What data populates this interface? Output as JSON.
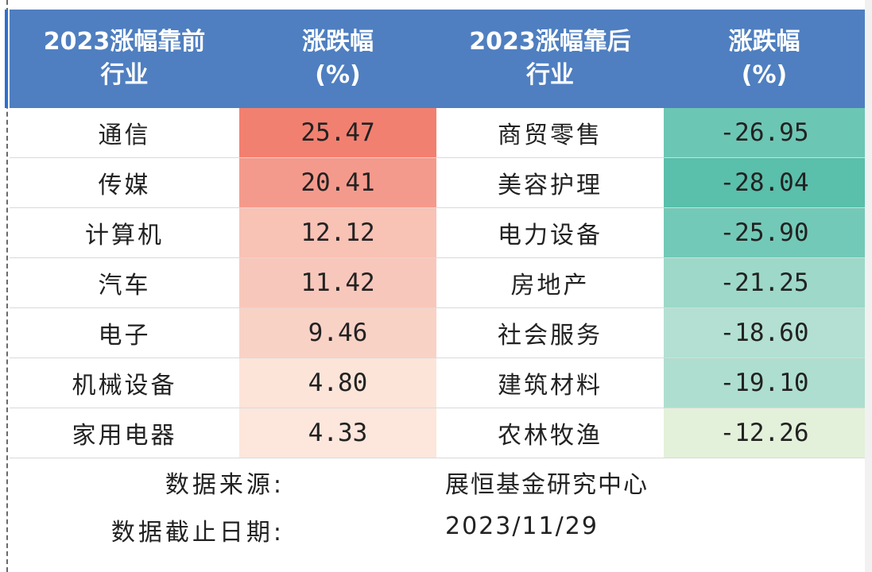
{
  "headers": [
    "2023涨幅靠前\n行业",
    "涨跌幅\n(%)",
    "2023涨幅靠后\n行业",
    "涨跌幅\n(%)"
  ],
  "rows": [
    {
      "top_industry": "通信",
      "top_change": "25.47",
      "top_color": "#f28070",
      "bottom_industry": "商贸零售",
      "bottom_change": "-26.95",
      "bottom_color": "#6cc6b4"
    },
    {
      "top_industry": "传媒",
      "top_change": "20.41",
      "top_color": "#f49a8c",
      "bottom_industry": "美容护理",
      "bottom_change": "-28.04",
      "bottom_color": "#5abfab"
    },
    {
      "top_industry": "计算机",
      "top_change": "12.12",
      "top_color": "#f8c2b5",
      "bottom_industry": "电力设备",
      "bottom_change": "-25.90",
      "bottom_color": "#73c9b7"
    },
    {
      "top_industry": "汽车",
      "top_change": "11.42",
      "top_color": "#f8c7bb",
      "bottom_industry": "房地产",
      "bottom_change": "-21.25",
      "bottom_color": "#9dd8c8"
    },
    {
      "top_industry": "电子",
      "top_change": "9.46",
      "top_color": "#f9d2c6",
      "bottom_industry": "社会服务",
      "bottom_change": "-18.60",
      "bottom_color": "#b3e0d2"
    },
    {
      "top_industry": "机械设备",
      "top_change": "4.80",
      "top_color": "#fce4d9",
      "bottom_industry": "建筑材料",
      "bottom_change": "-19.10",
      "bottom_color": "#aedecf"
    },
    {
      "top_industry": "家用电器",
      "top_change": "4.33",
      "top_color": "#fde6dc",
      "bottom_industry": "农林牧渔",
      "bottom_change": "-12.26",
      "bottom_color": "#e3f0da"
    }
  ],
  "footer": {
    "source_label": "数据来源:",
    "source_value": "展恒基金研究中心",
    "date_label": "数据截止日期:",
    "date_value": "2023/11/29"
  }
}
